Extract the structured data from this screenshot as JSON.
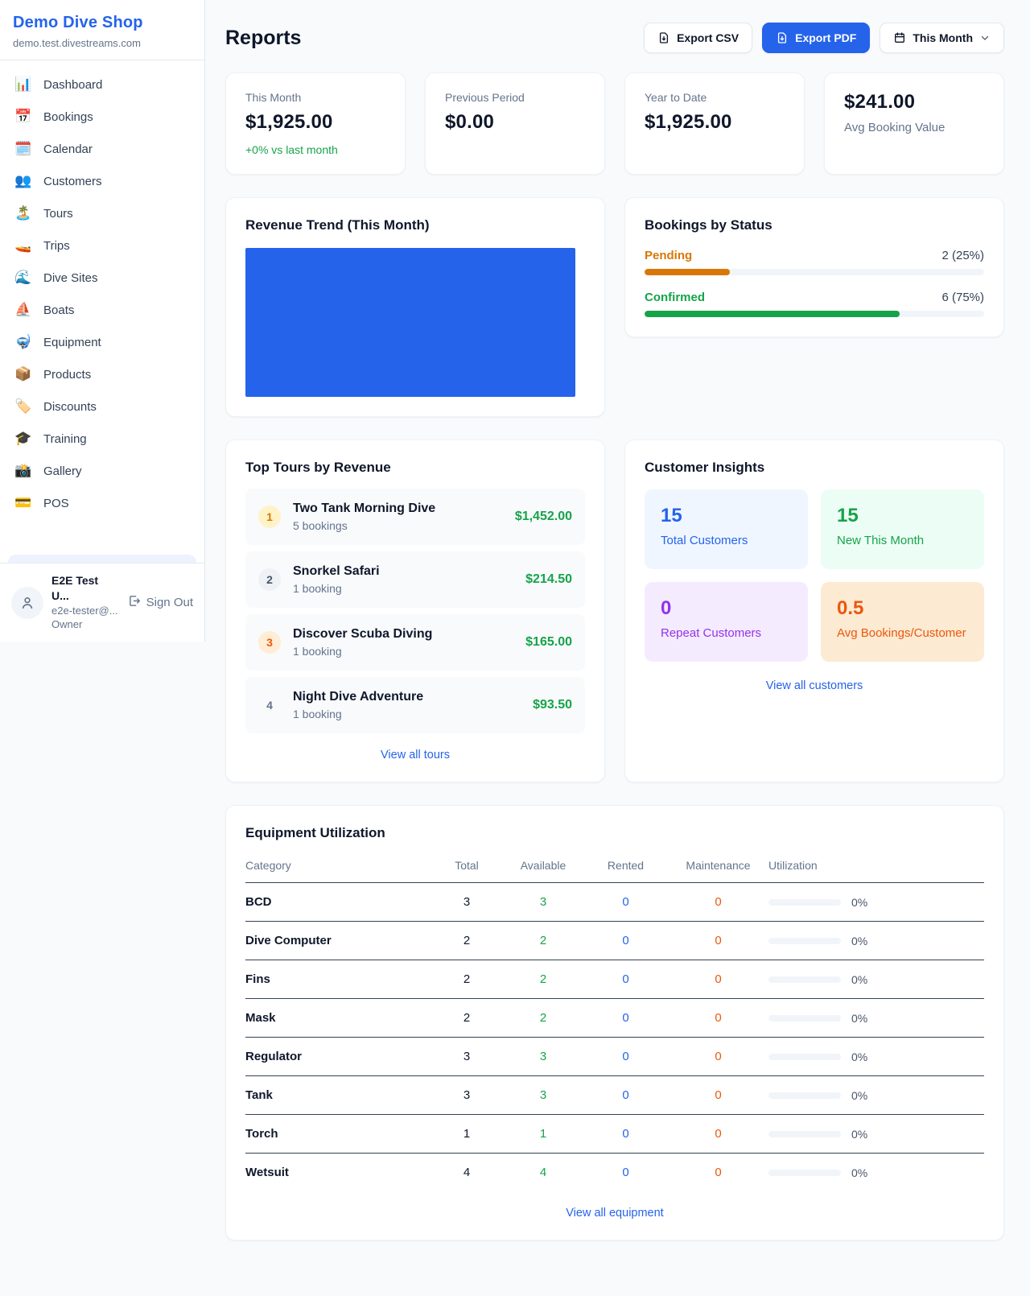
{
  "sidebar": {
    "shop_name": "Demo Dive Shop",
    "shop_domain": "demo.test.divestreams.com",
    "items": [
      {
        "icon": "📊",
        "icon_name": "dashboard-icon",
        "label": "Dashboard"
      },
      {
        "icon": "📅",
        "icon_name": "bookings-icon",
        "label": "Bookings"
      },
      {
        "icon": "🗓️",
        "icon_name": "calendar-icon",
        "label": "Calendar"
      },
      {
        "icon": "👥",
        "icon_name": "customers-icon",
        "label": "Customers"
      },
      {
        "icon": "🏝️",
        "icon_name": "tours-icon",
        "label": "Tours"
      },
      {
        "icon": "🚤",
        "icon_name": "trips-icon",
        "label": "Trips"
      },
      {
        "icon": "🌊",
        "icon_name": "dive-sites-icon",
        "label": "Dive Sites"
      },
      {
        "icon": "⛵",
        "icon_name": "boats-icon",
        "label": "Boats"
      },
      {
        "icon": "🤿",
        "icon_name": "equipment-icon",
        "label": "Equipment"
      },
      {
        "icon": "📦",
        "icon_name": "products-icon",
        "label": "Products"
      },
      {
        "icon": "🏷️",
        "icon_name": "discounts-icon",
        "label": "Discounts"
      },
      {
        "icon": "🎓",
        "icon_name": "training-icon",
        "label": "Training"
      },
      {
        "icon": "📸",
        "icon_name": "gallery-icon",
        "label": "Gallery"
      },
      {
        "icon": "💳",
        "icon_name": "pos-icon",
        "label": "POS"
      }
    ],
    "user": {
      "name": "E2E Test U...",
      "email": "e2e-tester@...",
      "role": "Owner",
      "sign_out_label": "Sign Out"
    }
  },
  "header": {
    "title": "Reports",
    "export_csv_label": "Export CSV",
    "export_pdf_label": "Export PDF",
    "period_label": "This Month"
  },
  "stats": [
    {
      "label": "This Month",
      "value": "$1,925.00",
      "delta": "+0% vs last month"
    },
    {
      "label": "Previous Period",
      "value": "$0.00"
    },
    {
      "label": "Year to Date",
      "value": "$1,925.00"
    },
    {
      "label": "Avg Booking Value",
      "value": "$241.00"
    }
  ],
  "revenue_trend": {
    "title": "Revenue Trend (This Month)",
    "bar_color": "#2563eb"
  },
  "bookings_by_status": {
    "title": "Bookings by Status",
    "rows": [
      {
        "label": "Pending",
        "count_text": "2 (25%)",
        "pct": 25,
        "color": "#d97706"
      },
      {
        "label": "Confirmed",
        "count_text": "6 (75%)",
        "pct": 75,
        "color": "#16a34a"
      }
    ]
  },
  "top_tours": {
    "title": "Top Tours by Revenue",
    "rows": [
      {
        "rank": "1",
        "name": "Two Tank Morning Dive",
        "bookings": "5 bookings",
        "revenue": "$1,452.00",
        "rank_bg": "#fef3c7",
        "rank_color": "#d97706"
      },
      {
        "rank": "2",
        "name": "Snorkel Safari",
        "bookings": "1 booking",
        "revenue": "$214.50",
        "rank_bg": "#eef2f6",
        "rank_color": "#475569"
      },
      {
        "rank": "3",
        "name": "Discover Scuba Diving",
        "bookings": "1 booking",
        "revenue": "$165.00",
        "rank_bg": "#ffedd5",
        "rank_color": "#ea580c"
      },
      {
        "rank": "4",
        "name": "Night Dive Adventure",
        "bookings": "1 booking",
        "revenue": "$93.50",
        "rank_bg": "transparent",
        "rank_color": "#64748b"
      }
    ],
    "view_all_label": "View all tours"
  },
  "customer_insights": {
    "title": "Customer Insights",
    "tiles": [
      {
        "value": "15",
        "label": "Total Customers",
        "color": "#2563eb",
        "bg": "#eff6ff"
      },
      {
        "value": "15",
        "label": "New This Month",
        "color": "#16a34a",
        "bg": "#ecfdf5"
      },
      {
        "value": "0",
        "label": "Repeat Customers",
        "color": "#9333ea",
        "bg": "#f5ebff"
      },
      {
        "value": "0.5",
        "label": "Avg Bookings/Customer",
        "color": "#ea580c",
        "bg": "#fdead3"
      }
    ],
    "view_all_label": "View all customers"
  },
  "equipment": {
    "title": "Equipment Utilization",
    "columns": [
      "Category",
      "Total",
      "Available",
      "Rented",
      "Maintenance",
      "Utilization"
    ],
    "rows": [
      {
        "category": "BCD",
        "total": "3",
        "available": "3",
        "rented": "0",
        "maintenance": "0",
        "utilization": "0%"
      },
      {
        "category": "Dive Computer",
        "total": "2",
        "available": "2",
        "rented": "0",
        "maintenance": "0",
        "utilization": "0%"
      },
      {
        "category": "Fins",
        "total": "2",
        "available": "2",
        "rented": "0",
        "maintenance": "0",
        "utilization": "0%"
      },
      {
        "category": "Mask",
        "total": "2",
        "available": "2",
        "rented": "0",
        "maintenance": "0",
        "utilization": "0%"
      },
      {
        "category": "Regulator",
        "total": "3",
        "available": "3",
        "rented": "0",
        "maintenance": "0",
        "utilization": "0%"
      },
      {
        "category": "Tank",
        "total": "3",
        "available": "3",
        "rented": "0",
        "maintenance": "0",
        "utilization": "0%"
      },
      {
        "category": "Torch",
        "total": "1",
        "available": "1",
        "rented": "0",
        "maintenance": "0",
        "utilization": "0%"
      },
      {
        "category": "Wetsuit",
        "total": "4",
        "available": "4",
        "rented": "0",
        "maintenance": "0",
        "utilization": "0%"
      }
    ],
    "view_all_label": "View all equipment"
  }
}
